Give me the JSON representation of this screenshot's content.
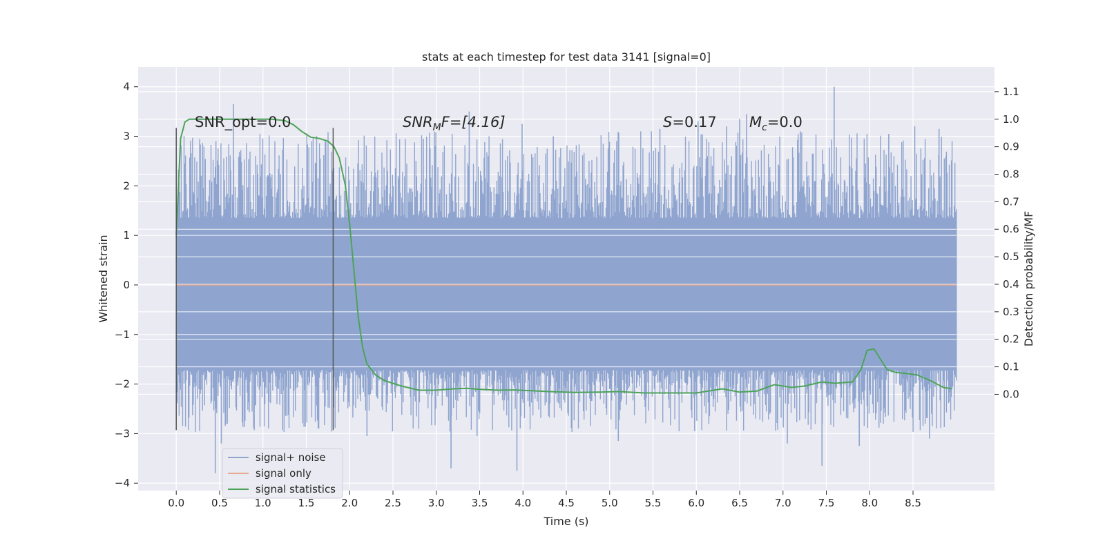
{
  "chart_data": {
    "type": "line",
    "title": "stats at each timestep for test data 3141 [signal=0]",
    "xlabel": "Time (s)",
    "ylabel": "Whitened strain",
    "y2label": "Detection probability/MF",
    "xlim": [
      -0.44,
      9.44
    ],
    "ylim": [
      -4.15,
      4.4
    ],
    "y2lim": [
      -0.35,
      1.19
    ],
    "xticks": [
      0.0,
      0.5,
      1.0,
      1.5,
      2.0,
      2.5,
      3.0,
      3.5,
      4.0,
      4.5,
      5.0,
      5.5,
      6.0,
      6.5,
      7.0,
      7.5,
      8.0,
      8.5
    ],
    "xtick_labels": [
      "0.0",
      "0.5",
      "1.0",
      "1.5",
      "2.0",
      "2.5",
      "3.0",
      "3.5",
      "4.0",
      "4.5",
      "5.0",
      "5.5",
      "6.0",
      "6.5",
      "7.0",
      "7.5",
      "8.0",
      "8.5"
    ],
    "yticks": [
      -4,
      -3,
      -2,
      -1,
      0,
      1,
      2,
      3,
      4
    ],
    "ytick_labels": [
      "−4",
      "−3",
      "−2",
      "−1",
      "0",
      "1",
      "2",
      "3",
      "4"
    ],
    "y2ticks": [
      0.0,
      0.1,
      0.2,
      0.3,
      0.4,
      0.5,
      0.6,
      0.7,
      0.8,
      0.9,
      1.0,
      1.1
    ],
    "y2tick_labels": [
      "0.0",
      "0.1",
      "0.2",
      "0.3",
      "0.4",
      "0.5",
      "0.6",
      "0.7",
      "0.8",
      "0.9",
      "1.0",
      "1.1"
    ],
    "grid": true,
    "legend_position": "lower-left",
    "annotations": {
      "snr_opt": "SNR_opt=0.0",
      "snr_mf_symbol": "SNR",
      "snr_mf_sub": "M",
      "snr_mf_rest": "F=[4.16]",
      "s_symbol": "S",
      "s_rest": "=0.17",
      "mc_symbol": "M",
      "mc_sub": "c",
      "mc_rest": "=0.0"
    },
    "vertical_markers": [
      {
        "x": 0.0,
        "y_range": [
          -2.93,
          3.17
        ]
      },
      {
        "x": 1.81,
        "y_range": [
          -2.93,
          3.17
        ]
      }
    ],
    "series": [
      {
        "name": "signal+ noise",
        "color": "#8fa5cf",
        "axis": "left",
        "x_range": [
          0.0,
          9.0
        ],
        "core_envelope": [
          -1.72,
          1.35
        ],
        "extreme_peaks": [
          [
            0.45,
            -3.8
          ],
          [
            0.66,
            3.65
          ],
          [
            0.52,
            -3.2
          ],
          [
            1.72,
            2.9
          ],
          [
            2.2,
            -3.05
          ],
          [
            2.85,
            2.95
          ],
          [
            3.17,
            -3.7
          ],
          [
            3.38,
            3.5
          ],
          [
            3.47,
            -3.05
          ],
          [
            3.93,
            -3.75
          ],
          [
            3.99,
            3.25
          ],
          [
            4.35,
            3.0
          ],
          [
            5.1,
            -3.15
          ],
          [
            5.58,
            3.15
          ],
          [
            5.98,
            -2.95
          ],
          [
            6.02,
            3.3
          ],
          [
            6.35,
            3.2
          ],
          [
            6.5,
            3.35
          ],
          [
            6.58,
            3.45
          ],
          [
            7.05,
            -3.2
          ],
          [
            7.2,
            3.1
          ],
          [
            7.45,
            -3.65
          ],
          [
            7.59,
            4.0
          ],
          [
            7.88,
            -3.25
          ],
          [
            8.22,
            3.05
          ],
          [
            8.52,
            3.2
          ],
          [
            8.69,
            -3.1
          ],
          [
            8.8,
            3.15
          ]
        ]
      },
      {
        "name": "signal only",
        "color": "#e6a98f",
        "axis": "left",
        "x": [
          0.0,
          9.0
        ],
        "y": [
          0.0,
          0.0
        ]
      },
      {
        "name": "signal statistics",
        "color": "#4da35a",
        "axis": "right",
        "x": [
          0.0,
          0.05,
          0.1,
          0.15,
          0.3,
          0.5,
          0.8,
          1.1,
          1.25,
          1.35,
          1.45,
          1.55,
          1.65,
          1.75,
          1.82,
          1.88,
          1.95,
          2.0,
          2.05,
          2.1,
          2.15,
          2.2,
          2.3,
          2.4,
          2.6,
          2.8,
          3.0,
          3.2,
          3.35,
          3.5,
          3.7,
          3.9,
          4.1,
          4.3,
          4.6,
          4.9,
          5.1,
          5.4,
          5.7,
          6.0,
          6.2,
          6.3,
          6.5,
          6.7,
          6.9,
          7.1,
          7.25,
          7.45,
          7.6,
          7.8,
          7.9,
          7.97,
          8.05,
          8.12,
          8.2,
          8.3,
          8.45,
          8.55,
          8.7,
          8.85,
          8.95
        ],
        "y": [
          0.58,
          0.93,
          0.99,
          1.0,
          1.0,
          1.0,
          1.0,
          1.0,
          0.995,
          0.98,
          0.955,
          0.935,
          0.93,
          0.92,
          0.9,
          0.86,
          0.76,
          0.62,
          0.45,
          0.28,
          0.17,
          0.11,
          0.07,
          0.05,
          0.03,
          0.015,
          0.015,
          0.02,
          0.022,
          0.018,
          0.015,
          0.016,
          0.013,
          0.01,
          0.007,
          0.008,
          0.01,
          0.005,
          0.005,
          0.005,
          0.015,
          0.02,
          0.008,
          0.012,
          0.035,
          0.025,
          0.03,
          0.045,
          0.04,
          0.045,
          0.09,
          0.16,
          0.165,
          0.13,
          0.09,
          0.08,
          0.075,
          0.07,
          0.05,
          0.025,
          0.02
        ]
      }
    ]
  }
}
